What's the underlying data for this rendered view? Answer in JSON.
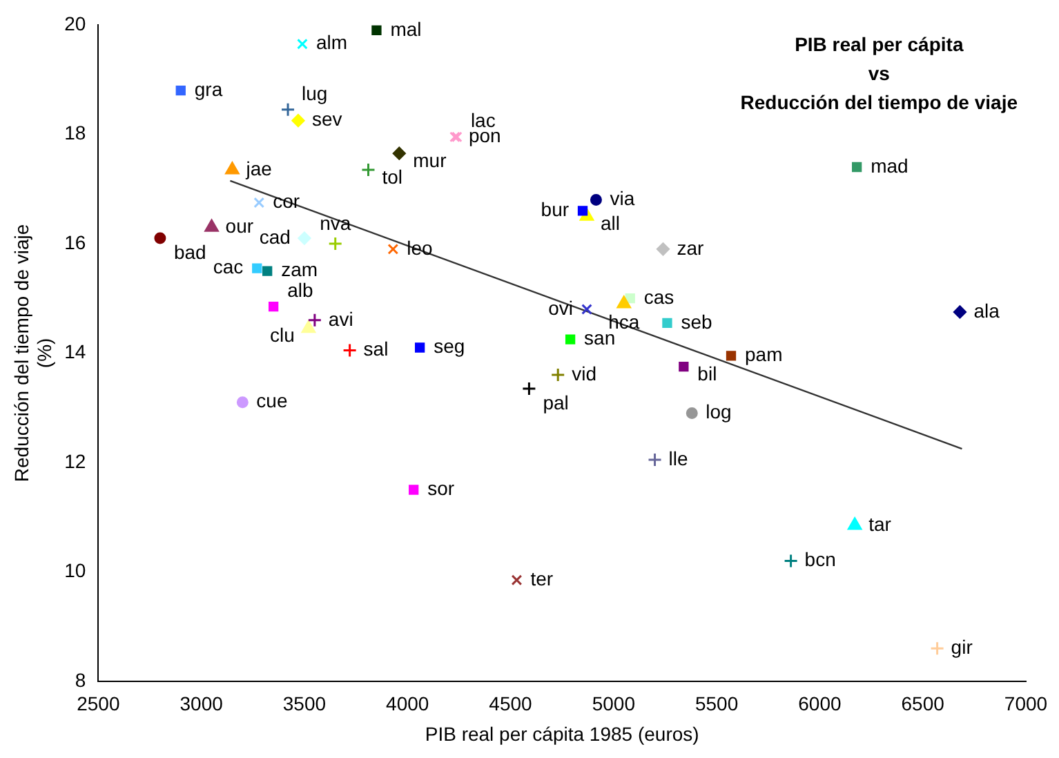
{
  "chart_data": {
    "type": "scatter",
    "title": "PIB real per cápita\nvs\nReducción del tiempo de viaje",
    "xlabel": "PIB real per cápita 1985 (euros)",
    "ylabel": "Reducción del tiempo de viaje (%)",
    "xlim": [
      2500,
      7000
    ],
    "xticks": [
      2500,
      3000,
      3500,
      4000,
      4500,
      5000,
      5500,
      6000,
      6500,
      7000
    ],
    "ylim": [
      8,
      20
    ],
    "yticks": [
      8,
      10,
      12,
      14,
      16,
      18,
      20
    ],
    "series": [
      {
        "name": "mal",
        "color": "#003300",
        "marker": "square",
        "x": [
          3850
        ],
        "values": [
          19.9
        ]
      },
      {
        "name": "alm",
        "color": "#00ffff",
        "marker": "x",
        "x": [
          3490
        ],
        "values": [
          19.65
        ]
      },
      {
        "name": "gra",
        "color": "#3366ff",
        "marker": "square",
        "x": [
          2900
        ],
        "values": [
          18.8
        ]
      },
      {
        "name": "lug",
        "color": "#336699",
        "marker": "cross",
        "x": [
          3420
        ],
        "values": [
          18.45
        ]
      },
      {
        "name": "sev",
        "color": "#ffff00",
        "marker": "diamond",
        "x": [
          3470
        ],
        "values": [
          18.25
        ]
      },
      {
        "name": "pon",
        "color": "#ff99cc",
        "marker": "x",
        "x": [
          4230
        ],
        "values": [
          17.95
        ]
      },
      {
        "name": "lac",
        "color": "#ff99cc",
        "marker": "x",
        "x": [
          4240
        ],
        "values": [
          17.95
        ]
      },
      {
        "name": "mur",
        "color": "#333300",
        "marker": "diamond",
        "x": [
          3960
        ],
        "values": [
          17.65
        ]
      },
      {
        "name": "jae",
        "color": "#ff9900",
        "marker": "triangle",
        "x": [
          3150
        ],
        "values": [
          17.35
        ]
      },
      {
        "name": "tol",
        "color": "#339933",
        "marker": "cross",
        "x": [
          3810
        ],
        "values": [
          17.35
        ]
      },
      {
        "name": "cor",
        "color": "#99ccff",
        "marker": "x",
        "x": [
          3280
        ],
        "values": [
          16.75
        ]
      },
      {
        "name": "mad",
        "color": "#339966",
        "marker": "square",
        "x": [
          6180
        ],
        "values": [
          17.4
        ]
      },
      {
        "name": "via",
        "color": "#000080",
        "marker": "circle",
        "x": [
          4915
        ],
        "values": [
          16.8
        ]
      },
      {
        "name": "bur",
        "color": "#0000ff",
        "marker": "square",
        "x": [
          4850
        ],
        "values": [
          16.6
        ]
      },
      {
        "name": "all",
        "color": "#ffff00",
        "marker": "triangle",
        "x": [
          4870
        ],
        "values": [
          16.5
        ]
      },
      {
        "name": "bad",
        "color": "#800000",
        "marker": "circle",
        "x": [
          2800
        ],
        "values": [
          16.1
        ]
      },
      {
        "name": "our",
        "color": "#993366",
        "marker": "triangle",
        "x": [
          3050
        ],
        "values": [
          16.3
        ]
      },
      {
        "name": "cad",
        "color": "#ccffff",
        "marker": "diamond",
        "x": [
          3500
        ],
        "values": [
          16.1
        ]
      },
      {
        "name": "nva",
        "color": "#99cc00",
        "marker": "cross",
        "x": [
          3650
        ],
        "values": [
          16.0
        ]
      },
      {
        "name": "leo",
        "color": "#ff6600",
        "marker": "x",
        "x": [
          3930
        ],
        "values": [
          15.9
        ]
      },
      {
        "name": "zar",
        "color": "#c0c0c0",
        "marker": "diamond",
        "x": [
          5240
        ],
        "values": [
          15.9
        ]
      },
      {
        "name": "cac",
        "color": "#33ccff",
        "marker": "square",
        "x": [
          3270
        ],
        "values": [
          15.55
        ]
      },
      {
        "name": "zam",
        "color": "#008080",
        "marker": "square",
        "x": [
          3320
        ],
        "values": [
          15.5
        ]
      },
      {
        "name": "alb",
        "color": "#ff00ff",
        "marker": "square",
        "x": [
          3350
        ],
        "values": [
          14.85
        ]
      },
      {
        "name": "avi",
        "color": "#800080",
        "marker": "cross",
        "x": [
          3550
        ],
        "values": [
          14.6
        ]
      },
      {
        "name": "clu",
        "color": "#ffff99",
        "marker": "triangle",
        "x": [
          3520
        ],
        "values": [
          14.45
        ]
      },
      {
        "name": "sal",
        "color": "#ff0000",
        "marker": "cross",
        "x": [
          3720
        ],
        "values": [
          14.05
        ]
      },
      {
        "name": "seg",
        "color": "#0000ff",
        "marker": "square",
        "x": [
          4060
        ],
        "values": [
          14.1
        ]
      },
      {
        "name": "cue",
        "color": "#cc99ff",
        "marker": "circle",
        "x": [
          3200
        ],
        "values": [
          13.1
        ]
      },
      {
        "name": "sor",
        "color": "#ff00ff",
        "marker": "square",
        "x": [
          4030
        ],
        "values": [
          11.5
        ]
      },
      {
        "name": "ovi",
        "color": "#3333cc",
        "marker": "x",
        "x": [
          4870
        ],
        "values": [
          14.8
        ]
      },
      {
        "name": "hca",
        "color": "#ffcc00",
        "marker": "triangle",
        "x": [
          5050
        ],
        "values": [
          14.9
        ]
      },
      {
        "name": "cas",
        "color": "#ccffcc",
        "marker": "square",
        "x": [
          5080
        ],
        "values": [
          15.0
        ]
      },
      {
        "name": "seb",
        "color": "#33cccc",
        "marker": "square",
        "x": [
          5260
        ],
        "values": [
          14.55
        ]
      },
      {
        "name": "san",
        "color": "#00ff00",
        "marker": "square",
        "x": [
          4790
        ],
        "values": [
          14.25
        ]
      },
      {
        "name": "pam",
        "color": "#993300",
        "marker": "square",
        "x": [
          5570
        ],
        "values": [
          13.95
        ]
      },
      {
        "name": "bil",
        "color": "#800080",
        "marker": "square",
        "x": [
          5340
        ],
        "values": [
          13.75
        ]
      },
      {
        "name": "vid",
        "color": "#808000",
        "marker": "cross",
        "x": [
          4730
        ],
        "values": [
          13.6
        ]
      },
      {
        "name": "pal",
        "color": "#000000",
        "marker": "cross",
        "x": [
          4590
        ],
        "values": [
          13.35
        ]
      },
      {
        "name": "log",
        "color": "#969696",
        "marker": "circle",
        "x": [
          5380
        ],
        "values": [
          12.9
        ]
      },
      {
        "name": "lle",
        "color": "#666699",
        "marker": "cross",
        "x": [
          5200
        ],
        "values": [
          12.05
        ]
      },
      {
        "name": "ala",
        "color": "#000080",
        "marker": "diamond",
        "x": [
          6680
        ],
        "values": [
          14.75
        ]
      },
      {
        "name": "tar",
        "color": "#00ffff",
        "marker": "triangle",
        "x": [
          6170
        ],
        "values": [
          10.85
        ]
      },
      {
        "name": "bcn",
        "color": "#008080",
        "marker": "cross",
        "x": [
          5860
        ],
        "values": [
          10.2
        ]
      },
      {
        "name": "ter",
        "color": "#993333",
        "marker": "x",
        "x": [
          4530
        ],
        "values": [
          9.85
        ]
      },
      {
        "name": "gir",
        "color": "#ffcc99",
        "marker": "cross",
        "x": [
          6570
        ],
        "values": [
          8.6
        ]
      },
      {
        "type": "line",
        "color": "#333333",
        "marker": "none",
        "x": [
          3140,
          6690
        ],
        "values": [
          17.15,
          12.25
        ]
      }
    ]
  }
}
